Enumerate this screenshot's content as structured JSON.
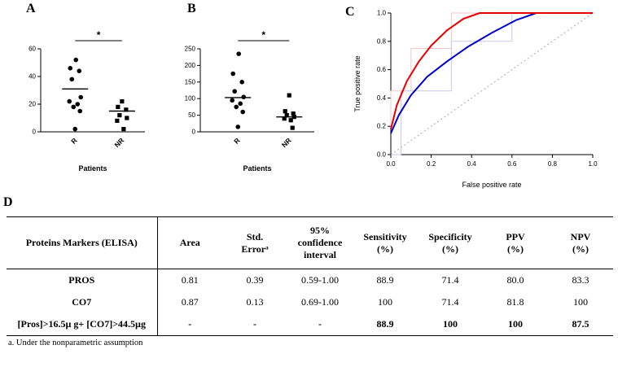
{
  "panels": {
    "a": "A",
    "b": "B",
    "c": "C",
    "d": "D"
  },
  "chart_data": [
    {
      "id": "chartA",
      "panel": "A",
      "type": "scatter",
      "subtype": "dot-plot",
      "title": "",
      "xlabel": "Patients",
      "ylabel": "",
      "categories": [
        "R",
        "NR"
      ],
      "ylim": [
        0,
        60
      ],
      "yticks": [
        0,
        20,
        40,
        60
      ],
      "significance": "*",
      "series": [
        {
          "name": "R",
          "marker": "circle",
          "median": 31,
          "values": [
            52,
            46,
            44,
            38,
            25,
            22,
            20,
            18,
            15,
            2
          ]
        },
        {
          "name": "NR",
          "marker": "square",
          "median": 15,
          "values": [
            22,
            18,
            16,
            12,
            10,
            8,
            2
          ]
        }
      ]
    },
    {
      "id": "chartB",
      "panel": "B",
      "type": "scatter",
      "subtype": "dot-plot",
      "title": "",
      "xlabel": "Patients",
      "ylabel": "",
      "categories": [
        "R",
        "NR"
      ],
      "ylim": [
        0,
        250
      ],
      "yticks": [
        0,
        50,
        100,
        150,
        200,
        250
      ],
      "significance": "*",
      "series": [
        {
          "name": "R",
          "marker": "circle",
          "median": 103,
          "values": [
            235,
            175,
            150,
            122,
            105,
            95,
            85,
            75,
            60,
            15
          ]
        },
        {
          "name": "NR",
          "marker": "square",
          "median": 45,
          "values": [
            110,
            62,
            55,
            50,
            45,
            40,
            35,
            12
          ]
        }
      ]
    },
    {
      "id": "chartC",
      "panel": "C",
      "type": "line",
      "subtype": "roc-curve",
      "title": "",
      "xlabel": "False positive rate",
      "ylabel": "True positive rate",
      "xlim": [
        0,
        1
      ],
      "ylim": [
        0,
        1
      ],
      "xticks": [
        0,
        0.2,
        0.4,
        0.6,
        0.8,
        1
      ],
      "yticks": [
        0,
        0.2,
        0.4,
        0.6,
        0.8,
        1
      ],
      "series": [
        {
          "name": "PROS confidence band",
          "color": "#f6c6c6",
          "width": 1,
          "x": [
            0,
            0,
            0.1,
            0.1,
            0.3,
            0.3,
            1
          ],
          "y": [
            0.2,
            0.45,
            0.45,
            0.75,
            0.75,
            1,
            1
          ]
        },
        {
          "name": "CO7 confidence band",
          "color": "#c9c9f0",
          "width": 1,
          "x": [
            0,
            0.05,
            0.05,
            0.3,
            0.3,
            0.6,
            0.6,
            1
          ],
          "y": [
            0,
            0,
            0.45,
            0.45,
            0.8,
            0.8,
            1,
            1
          ]
        },
        {
          "name": "reference diagonal",
          "color": "#aaaaaa",
          "width": 1,
          "dash": "2,3",
          "x": [
            0,
            1
          ],
          "y": [
            0,
            1
          ]
        },
        {
          "name": "CO7 ROC",
          "color": "#0000cc",
          "width": 2,
          "x": [
            0,
            0.04,
            0.1,
            0.18,
            0.28,
            0.38,
            0.5,
            0.62,
            0.72,
            1
          ],
          "y": [
            0.15,
            0.28,
            0.42,
            0.55,
            0.66,
            0.76,
            0.86,
            0.95,
            1,
            1
          ]
        },
        {
          "name": "PROS ROC",
          "color": "#e60000",
          "width": 2,
          "x": [
            0,
            0.03,
            0.08,
            0.14,
            0.2,
            0.28,
            0.36,
            0.44,
            1
          ],
          "y": [
            0.18,
            0.35,
            0.52,
            0.66,
            0.77,
            0.88,
            0.96,
            1,
            1
          ]
        }
      ]
    }
  ],
  "table": {
    "headers": [
      "Proteins Markers (ELISA)",
      "Area",
      "Std.\nErrorᵃ",
      "95%\nconfidence\ninterval",
      "Sensitivity\n(%)",
      "Specificity\n(%)",
      "PPV\n(%)",
      "NPV\n(%)"
    ],
    "rows": [
      {
        "bold": false,
        "cells": [
          "PROS",
          "0.81",
          "0.39",
          "0.59-1.00",
          "88.9",
          "71.4",
          "80.0",
          "83.3"
        ]
      },
      {
        "bold": false,
        "cells": [
          "CO7",
          "0.87",
          "0.13",
          "0.69-1.00",
          "100",
          "71.4",
          "81.8",
          "100"
        ]
      },
      {
        "bold": true,
        "cells": [
          "[Pros]>16.5µ g+ [CO7]>44.5µg",
          "-",
          "-",
          "-",
          "88.9",
          "100",
          "100",
          "87.5"
        ]
      }
    ],
    "footnote": "a. Under the nonparametric assumption"
  }
}
